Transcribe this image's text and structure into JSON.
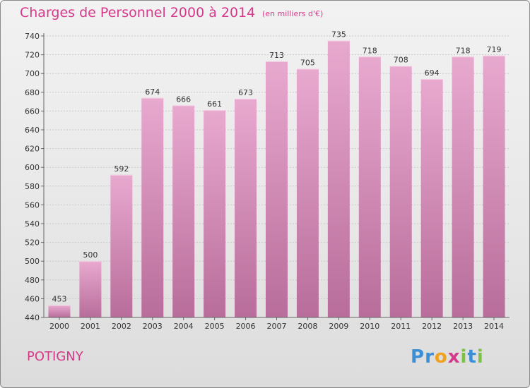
{
  "header": {
    "title": "Charges de Personnel 2000 à 2014",
    "subtitle": "(en milliers d'€)"
  },
  "footer": {
    "commune": "POTIGNY",
    "logo": {
      "text": "Proxiti",
      "letters": [
        "P",
        "r",
        "o",
        "x",
        "i",
        "t",
        "i"
      ],
      "colors": [
        "#3a8fd6",
        "#3a8fd6",
        "#f0a21f",
        "#d6398a",
        "#7cc242",
        "#3a8fd6",
        "#7cc242"
      ]
    }
  },
  "chart_data": {
    "type": "bar",
    "title": "Charges de Personnel 2000 à 2014",
    "subtitle": "(en milliers d'€)",
    "categories": [
      "2000",
      "2001",
      "2002",
      "2003",
      "2004",
      "2005",
      "2006",
      "2007",
      "2008",
      "2009",
      "2010",
      "2011",
      "2012",
      "2013",
      "2014"
    ],
    "values": [
      453,
      500,
      592,
      674,
      666,
      661,
      673,
      713,
      705,
      735,
      718,
      708,
      694,
      718,
      719
    ],
    "xlabel": "",
    "ylabel": "",
    "ylim": [
      440,
      740
    ],
    "yticks": [
      440,
      460,
      480,
      500,
      520,
      540,
      560,
      580,
      600,
      620,
      640,
      660,
      680,
      700,
      720,
      740
    ],
    "grid": true,
    "bar_color_top": "#e8a9cf",
    "bar_color_bottom": "#b86d9a"
  }
}
